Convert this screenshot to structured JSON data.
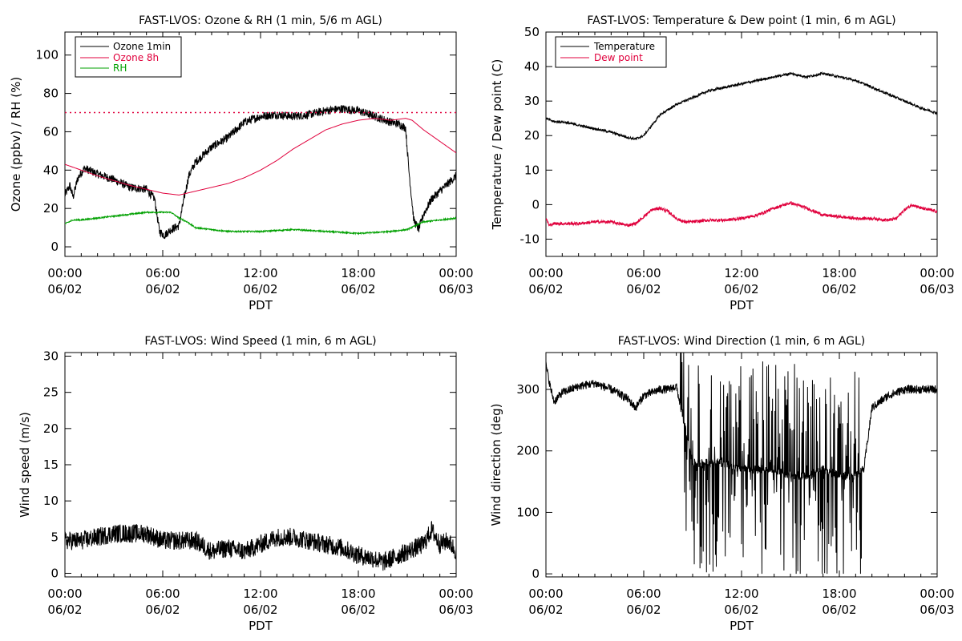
{
  "chart_data": [
    {
      "id": "ozone",
      "type": "line",
      "title": "FAST-LVOS: Ozone & RH (1 min, 5/6 m AGL)",
      "xlabel": "PDT",
      "ylabel": "Ozone (ppbv) / RH (%)",
      "xlim": [
        0,
        24
      ],
      "ylim": [
        -5,
        112
      ],
      "yticks": [
        0,
        20,
        40,
        60,
        80,
        100
      ],
      "xticks": [
        {
          "time": "00:00",
          "date": "06/02"
        },
        {
          "time": "06:00",
          "date": "06/02"
        },
        {
          "time": "12:00",
          "date": "06/02"
        },
        {
          "time": "18:00",
          "date": "06/02"
        },
        {
          "time": "00:00",
          "date": "06/03"
        }
      ],
      "legend": "top-left",
      "reference_line": {
        "y": 70,
        "color": "#e0003c",
        "style": "dotted"
      },
      "series": [
        {
          "name": "Ozone 1min",
          "color": "#000000",
          "noise": 2.2,
          "x": [
            0,
            0.3,
            0.5,
            0.8,
            1.2,
            2,
            3,
            4,
            5,
            5.5,
            5.8,
            6.1,
            6.5,
            7,
            7.3,
            7.6,
            8,
            9,
            10,
            11,
            12,
            13,
            14,
            15,
            16,
            17,
            18,
            19,
            20,
            20.5,
            20.9,
            21.1,
            21.4,
            21.7,
            22,
            22.5,
            23,
            23.5,
            24
          ],
          "y": [
            27,
            32,
            26,
            36,
            41,
            38,
            35,
            31,
            30,
            25,
            8,
            6,
            9,
            11,
            25,
            37,
            44,
            52,
            57,
            65,
            68,
            69,
            68,
            69,
            71,
            72,
            71,
            68,
            65,
            64,
            62,
            40,
            14,
            9,
            17,
            25,
            29,
            33,
            37
          ]
        },
        {
          "name": "Ozone 8h",
          "color": "#e0003c",
          "noise": 0,
          "x": [
            0,
            2,
            4,
            5,
            6,
            7,
            8,
            9,
            10,
            11,
            12,
            13,
            14,
            15,
            16,
            17,
            18,
            19,
            20,
            20.9,
            21.3,
            22,
            23,
            24
          ],
          "y": [
            43,
            37,
            32,
            30,
            28,
            27,
            29,
            31,
            33,
            36,
            40,
            45,
            51,
            56,
            61,
            64,
            66,
            67,
            66,
            67,
            66,
            61,
            55,
            49
          ]
        },
        {
          "name": "RH",
          "color": "#00a000",
          "noise": 0.35,
          "x": [
            0,
            0.5,
            1,
            2,
            3,
            4,
            5,
            6,
            6.5,
            7,
            7.5,
            8,
            9,
            10,
            11,
            12,
            14,
            16,
            18,
            20,
            21,
            21.5,
            22,
            23,
            24
          ],
          "y": [
            12,
            14,
            14,
            15,
            16,
            17,
            18,
            18,
            18,
            15,
            13,
            10,
            9,
            8,
            8,
            8,
            9,
            8,
            7,
            8,
            9,
            11,
            13,
            14,
            15
          ]
        }
      ]
    },
    {
      "id": "temp",
      "type": "line",
      "title": "FAST-LVOS: Temperature & Dew point (1 min, 6 m AGL)",
      "xlabel": "PDT",
      "ylabel": "Temperature / Dew point (C)",
      "xlim": [
        0,
        24
      ],
      "ylim": [
        -15,
        50
      ],
      "yticks": [
        -10,
        0,
        10,
        20,
        30,
        40,
        50
      ],
      "xticks": [
        {
          "time": "00:00",
          "date": "06/02"
        },
        {
          "time": "06:00",
          "date": "06/02"
        },
        {
          "time": "12:00",
          "date": "06/02"
        },
        {
          "time": "18:00",
          "date": "06/02"
        },
        {
          "time": "00:00",
          "date": "06/03"
        }
      ],
      "legend": "top-left",
      "series": [
        {
          "name": "Temperature",
          "color": "#000000",
          "noise": 0.35,
          "x": [
            0,
            0.5,
            1,
            2,
            3,
            4,
            5,
            5.5,
            6,
            6.5,
            7,
            8,
            9,
            10,
            11,
            12,
            13,
            14,
            15,
            16,
            17,
            18,
            19,
            20,
            21,
            22,
            23,
            24
          ],
          "y": [
            25,
            24,
            24,
            23,
            22,
            21,
            19.5,
            19,
            20,
            23,
            26,
            29,
            31,
            33,
            34,
            35,
            36,
            37,
            38,
            37,
            38,
            37,
            36,
            34,
            32,
            30,
            28,
            26.5
          ]
        },
        {
          "name": "Dew point",
          "color": "#e0003c",
          "noise": 0.45,
          "x": [
            0,
            0.2,
            0.5,
            1,
            2,
            3,
            4,
            4.5,
            5,
            5.5,
            6,
            6.5,
            7,
            7.5,
            8,
            8.5,
            9,
            10,
            11,
            12,
            13,
            14,
            15,
            16,
            17,
            18,
            19,
            20,
            21,
            21.5,
            22,
            22.5,
            23,
            24
          ],
          "y": [
            -4,
            -6,
            -5.5,
            -5.5,
            -5.5,
            -5,
            -5,
            -5.5,
            -6,
            -5.5,
            -3.5,
            -1.5,
            -1,
            -2,
            -4,
            -5,
            -5,
            -4.5,
            -4.5,
            -4,
            -3,
            -1,
            0.5,
            -1,
            -3,
            -3.5,
            -4,
            -4,
            -4.5,
            -4,
            -1.5,
            0,
            -1,
            -2
          ]
        }
      ]
    },
    {
      "id": "wspd",
      "type": "line",
      "title": "FAST-LVOS: Wind Speed (1 min, 6 m AGL)",
      "xlabel": "PDT",
      "ylabel": "Wind speed (m/s)",
      "xlim": [
        0,
        24
      ],
      "ylim": [
        -0.5,
        30.5
      ],
      "yticks": [
        0,
        5,
        10,
        15,
        20,
        25,
        30
      ],
      "xticks": [
        {
          "time": "00:00",
          "date": "06/02"
        },
        {
          "time": "06:00",
          "date": "06/02"
        },
        {
          "time": "12:00",
          "date": "06/02"
        },
        {
          "time": "18:00",
          "date": "06/02"
        },
        {
          "time": "00:00",
          "date": "06/03"
        }
      ],
      "series": [
        {
          "name": "",
          "color": "#000000",
          "noise": 1.3,
          "x": [
            0,
            1,
            2,
            3,
            4,
            5,
            6,
            7,
            8,
            9,
            10,
            11,
            12,
            13,
            14,
            15,
            16,
            17,
            18,
            19,
            19.5,
            20,
            21,
            22,
            22.5,
            23,
            23.5,
            24
          ],
          "y": [
            4.5,
            4.5,
            5,
            5.5,
            5.5,
            5.5,
            4.5,
            4.5,
            4.5,
            3,
            3.5,
            3,
            4,
            5,
            5,
            4.5,
            4,
            3.5,
            2.5,
            2,
            1.5,
            2,
            3,
            4,
            6,
            4,
            4.5,
            3
          ]
        }
      ]
    },
    {
      "id": "wdir",
      "type": "line",
      "title": "FAST-LVOS: Wind Direction (1 min, 6 m AGL)",
      "xlabel": "PDT",
      "ylabel": "Wind direction (deg)",
      "xlim": [
        0,
        24
      ],
      "ylim": [
        -5,
        360
      ],
      "yticks": [
        0,
        100,
        200,
        300
      ],
      "xticks": [
        {
          "time": "00:00",
          "date": "06/02"
        },
        {
          "time": "06:00",
          "date": "06/02"
        },
        {
          "time": "12:00",
          "date": "06/02"
        },
        {
          "time": "18:00",
          "date": "06/02"
        },
        {
          "time": "00:00",
          "date": "06/03"
        }
      ],
      "series": [
        {
          "name": "",
          "color": "#000000",
          "noise": 7,
          "x": [
            0,
            0.3,
            0.5,
            1,
            2,
            3,
            4,
            5,
            5.5,
            6,
            7,
            7.5,
            8,
            9,
            10,
            11,
            12,
            13,
            14,
            15,
            16,
            17,
            18,
            19,
            19.5,
            20,
            21,
            22,
            23,
            24
          ],
          "y": [
            340,
            300,
            280,
            295,
            305,
            310,
            300,
            285,
            270,
            290,
            300,
            300,
            305,
            180,
            180,
            180,
            170,
            170,
            170,
            160,
            160,
            170,
            160,
            160,
            170,
            270,
            290,
            300,
            300,
            300
          ]
        }
      ],
      "erratic_span": {
        "from": 8.2,
        "to": 19.4,
        "amplitude": 175
      }
    }
  ]
}
